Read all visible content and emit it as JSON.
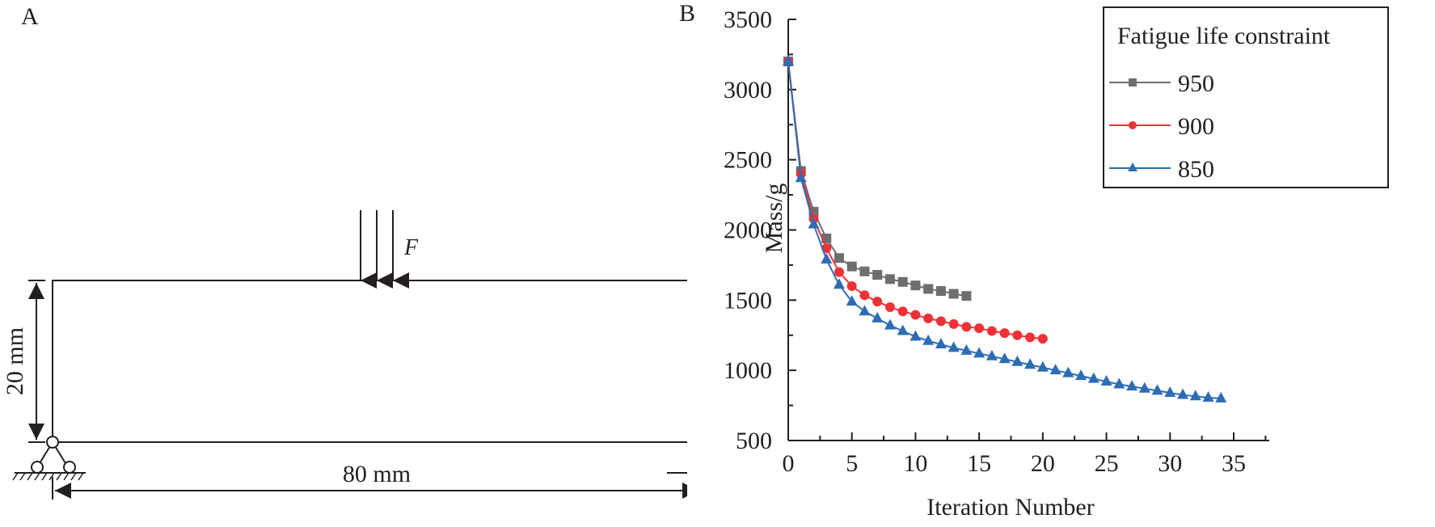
{
  "panel_a": {
    "label": "A",
    "force_label": "F",
    "height_dim": "20 mm",
    "length_dim": "80 mm"
  },
  "panel_b": {
    "label": "B"
  },
  "chart_data": {
    "type": "line",
    "title": "",
    "xlabel": "Iteration Number",
    "ylabel": "Mass/g",
    "xlim": [
      0,
      35
    ],
    "ylim": [
      500,
      3500
    ],
    "xticks": [
      0,
      5,
      10,
      15,
      20,
      25,
      30,
      35
    ],
    "yticks": [
      500,
      1000,
      1500,
      2000,
      2500,
      3000,
      3500
    ],
    "grid": false,
    "legend": {
      "title": "Fatigue life constraint",
      "position": "upper right"
    },
    "series": [
      {
        "name": "950",
        "color": "#6d6e70",
        "marker": "square",
        "x": [
          0,
          1,
          2,
          3,
          4,
          5,
          6,
          7,
          8,
          9,
          10,
          11,
          12,
          13,
          14
        ],
        "values": [
          3200,
          2420,
          2130,
          1940,
          1800,
          1740,
          1705,
          1680,
          1650,
          1630,
          1605,
          1580,
          1565,
          1545,
          1530
        ]
      },
      {
        "name": "900",
        "color": "#ed3237",
        "marker": "circle",
        "x": [
          0,
          1,
          2,
          3,
          4,
          5,
          6,
          7,
          8,
          9,
          10,
          11,
          12,
          13,
          14,
          15,
          16,
          17,
          18,
          19,
          20
        ],
        "values": [
          3200,
          2400,
          2080,
          1870,
          1700,
          1600,
          1535,
          1490,
          1450,
          1420,
          1395,
          1370,
          1350,
          1330,
          1310,
          1300,
          1280,
          1265,
          1250,
          1235,
          1225
        ]
      },
      {
        "name": "850",
        "color": "#2e6db4",
        "marker": "triangle",
        "x": [
          0,
          1,
          2,
          3,
          4,
          5,
          6,
          7,
          8,
          9,
          10,
          11,
          12,
          13,
          14,
          15,
          16,
          17,
          18,
          19,
          20,
          21,
          22,
          23,
          24,
          25,
          26,
          27,
          28,
          29,
          30,
          31,
          32,
          33,
          34
        ],
        "values": [
          3200,
          2370,
          2040,
          1790,
          1610,
          1490,
          1420,
          1370,
          1320,
          1280,
          1240,
          1210,
          1185,
          1160,
          1140,
          1120,
          1100,
          1080,
          1060,
          1040,
          1020,
          1000,
          980,
          960,
          940,
          920,
          900,
          885,
          870,
          855,
          840,
          825,
          815,
          805,
          800
        ]
      }
    ]
  }
}
